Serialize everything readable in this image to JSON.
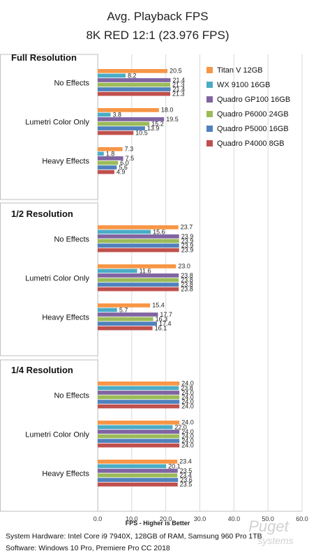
{
  "chart_data": {
    "type": "bar",
    "orientation": "horizontal",
    "title": "Avg. Playback FPS",
    "subtitle": "8K RED 12:1 (23.976 FPS)",
    "xlabel": "FPS - Higher is Better",
    "xlim": [
      0,
      60
    ],
    "xticks": [
      "0.0",
      "10.0",
      "20.0",
      "30.0",
      "40.0",
      "50.0",
      "60.0"
    ],
    "grid": true,
    "legend_position": "top-right",
    "categories": [
      "No Effects",
      "Lumetri Color Only",
      "Heavy Effects"
    ],
    "series": [
      {
        "name": "Titan V 12GB",
        "color": "#F79646"
      },
      {
        "name": "WX 9100 16GB",
        "color": "#4BACC6"
      },
      {
        "name": "Quadro GP100 16GB",
        "color": "#8064A2"
      },
      {
        "name": "Quadro P6000 24GB",
        "color": "#9BBB59"
      },
      {
        "name": "Quadro P5000 16GB",
        "color": "#4F81BD"
      },
      {
        "name": "Quadro P4000 8GB",
        "color": "#C0504D"
      }
    ],
    "groups": [
      {
        "name": "Full Resolution",
        "values": [
          [
            20.5,
            8.2,
            21.4,
            21.3,
            21.4,
            21.3
          ],
          [
            18.0,
            3.8,
            19.5,
            15.2,
            13.9,
            10.5
          ],
          [
            7.3,
            1.8,
            7.5,
            6.0,
            5.6,
            4.9
          ]
        ]
      },
      {
        "name": "1/2 Resolution",
        "values": [
          [
            23.7,
            15.6,
            23.9,
            23.9,
            23.9,
            23.9
          ],
          [
            23.0,
            11.6,
            23.8,
            23.8,
            23.8,
            23.8
          ],
          [
            15.4,
            5.7,
            17.7,
            16.3,
            17.4,
            16.1
          ]
        ]
      },
      {
        "name": "1/4 Resolution",
        "values": [
          [
            24.0,
            23.8,
            24.0,
            24.0,
            24.0,
            24.0
          ],
          [
            24.0,
            22.0,
            24.0,
            24.0,
            24.0,
            24.0
          ],
          [
            23.4,
            20.1,
            23.5,
            23.4,
            23.6,
            23.5
          ]
        ]
      }
    ]
  },
  "footer": {
    "hardware": "System Hardware: Intel Core i9 7940X,  128GB of RAM, Samsung 960 Pro 1TB",
    "software": "Software: Windows 10 Pro, Premiere Pro CC 2018"
  },
  "watermark": {
    "line1": "Puget",
    "line2": "systems"
  }
}
